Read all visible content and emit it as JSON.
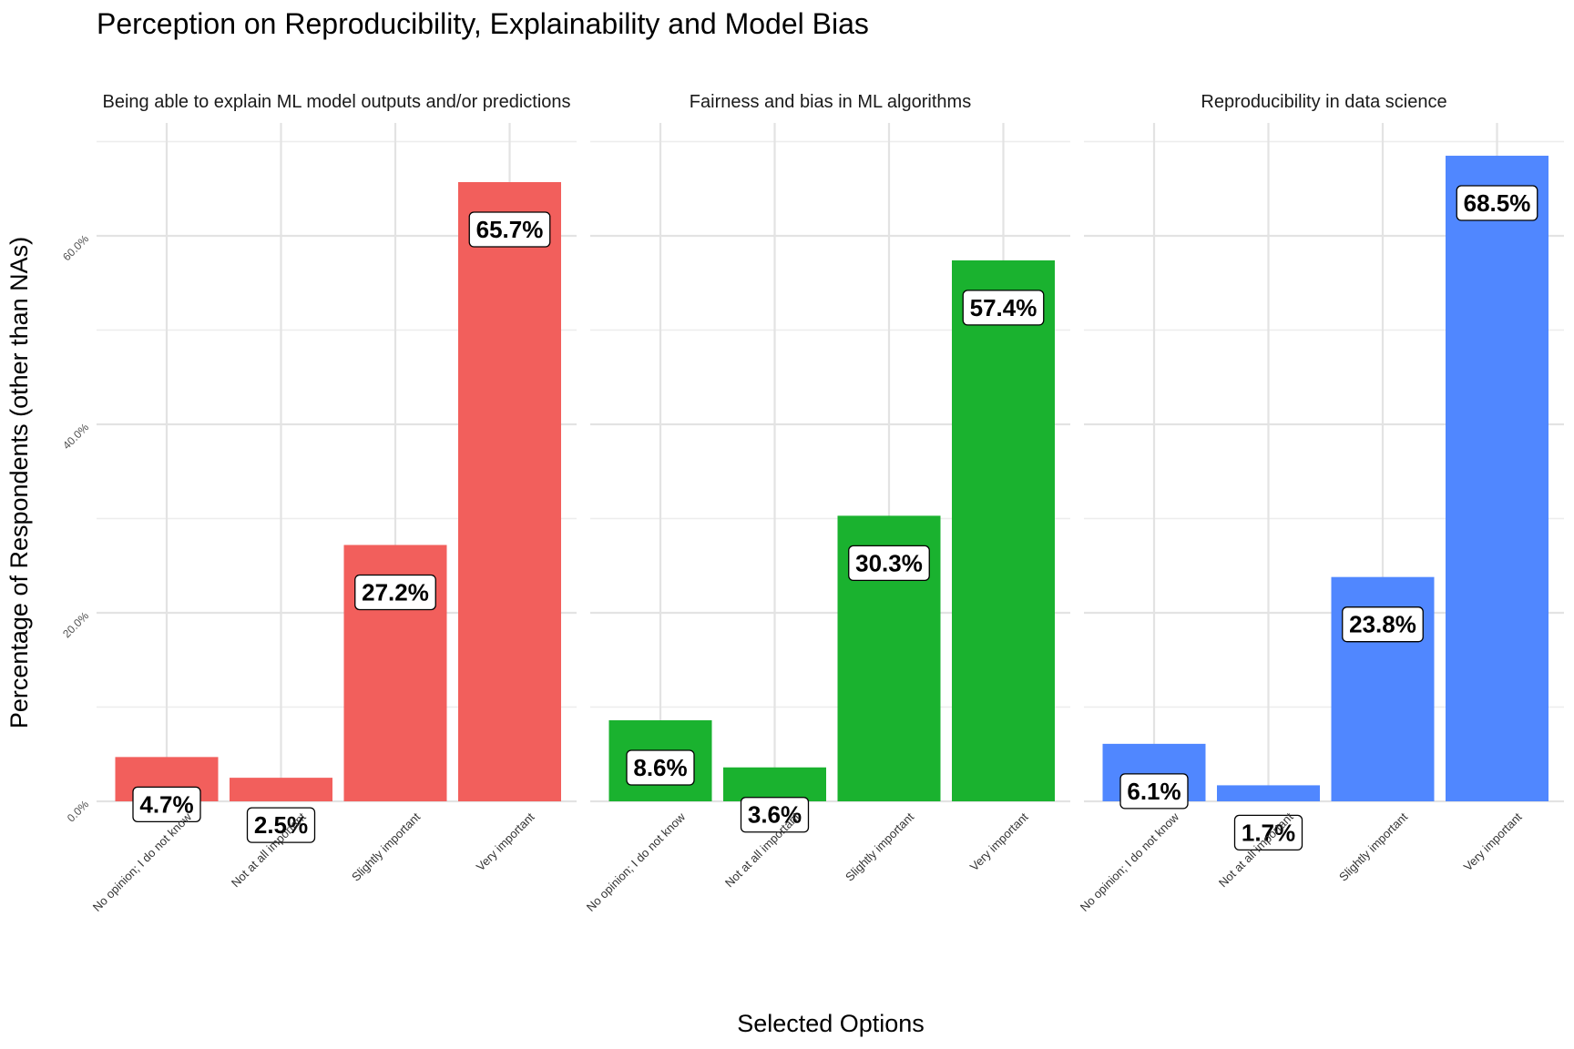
{
  "chart_data": {
    "type": "bar",
    "title": "Perception on Reproducibility, Explainability and Model Bias",
    "xlabel": "Selected Options",
    "ylabel": "Percentage of Respondents (other than NAs)",
    "categories": [
      "No opinion; I do not know",
      "Not at all important",
      "Slightly important",
      "Very important"
    ],
    "ylim": [
      0,
      70
    ],
    "yticks": [
      0,
      20,
      40,
      60
    ],
    "ytick_labels": [
      "0.0%",
      "20.0%",
      "40.0%",
      "60.0%"
    ],
    "grid": true,
    "facets": [
      {
        "name": "Being able to explain ML model outputs and/or predictions",
        "color": "#F25F5C",
        "values": [
          4.7,
          2.5,
          27.2,
          65.7
        ],
        "labels": [
          "4.7%",
          "2.5%",
          "27.2%",
          "65.7%"
        ]
      },
      {
        "name": "Fairness and bias in ML algorithms",
        "color": "#1AB22F",
        "values": [
          8.6,
          3.6,
          30.3,
          57.4
        ],
        "labels": [
          "8.6%",
          "3.6%",
          "30.3%",
          "57.4%"
        ]
      },
      {
        "name": "Reproducibility in data science",
        "color": "#5087FF",
        "values": [
          6.1,
          1.7,
          23.8,
          68.5
        ],
        "labels": [
          "6.1%",
          "1.7%",
          "23.8%",
          "68.5%"
        ]
      }
    ]
  }
}
